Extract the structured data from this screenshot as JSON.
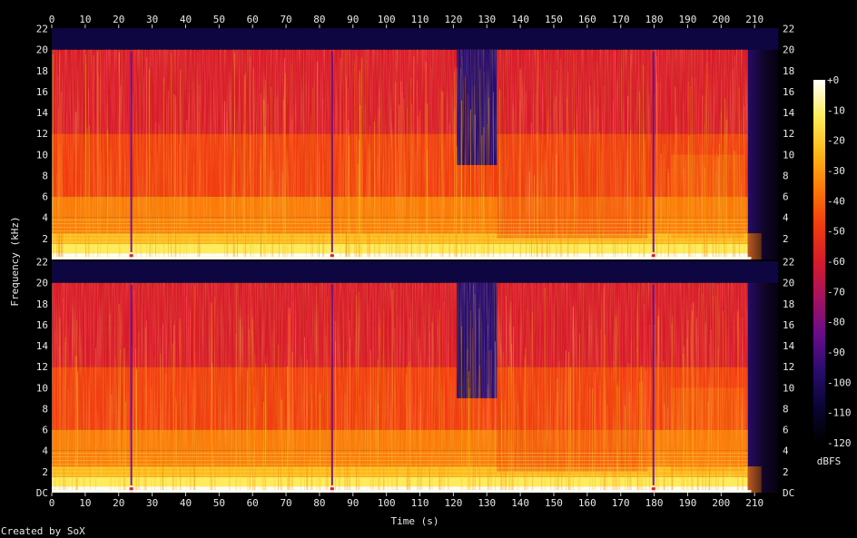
{
  "chart_data": {
    "type": "heatmap",
    "xlabel": "Time (s)",
    "ylabel": "Frequency (kHz)",
    "x_ticks": [
      "0",
      "10",
      "20",
      "30",
      "40",
      "50",
      "60",
      "70",
      "80",
      "90",
      "100",
      "110",
      "120",
      "130",
      "140",
      "150",
      "160",
      "170",
      "180",
      "190",
      "200",
      "210"
    ],
    "xlim": [
      0,
      217
    ],
    "channels": [
      {
        "y_ticks": [
          "2",
          "4",
          "6",
          "8",
          "10",
          "12",
          "14",
          "16",
          "18",
          "20",
          "22"
        ]
      },
      {
        "y_ticks": [
          "DC",
          "2",
          "4",
          "6",
          "8",
          "10",
          "12",
          "14",
          "16",
          "18",
          "20",
          "22"
        ]
      }
    ],
    "ylim_khz": [
      0,
      22.05
    ],
    "colorbar": {
      "label": "dBFS",
      "ticks": [
        "+0",
        "-10",
        "-20",
        "-30",
        "-40",
        "-50",
        "-60",
        "-70",
        "-80",
        "-90",
        "-100",
        "-110",
        "-120"
      ],
      "range_dbfs": [
        -120,
        0
      ]
    },
    "lowpass_cutoff_khz": 20,
    "quiet_band_top_khz": [
      {
        "x_range_s": [
          121,
          133
        ],
        "level_dbfs": -95
      }
    ],
    "section_boundaries_s": [
      23.5,
      83.5,
      179.5
    ],
    "fade_out_s": [
      208,
      217
    ],
    "colors": {
      "background": "#000000",
      "text": "#e8e8e8",
      "colormap": [
        "#000000",
        "#0a0535",
        "#2a0c6e",
        "#6a0c8a",
        "#a5125f",
        "#d81b2a",
        "#f03c0f",
        "#fa7a08",
        "#fdb81b",
        "#feec5a",
        "#ffffff"
      ]
    },
    "footer": "Created by SoX"
  }
}
